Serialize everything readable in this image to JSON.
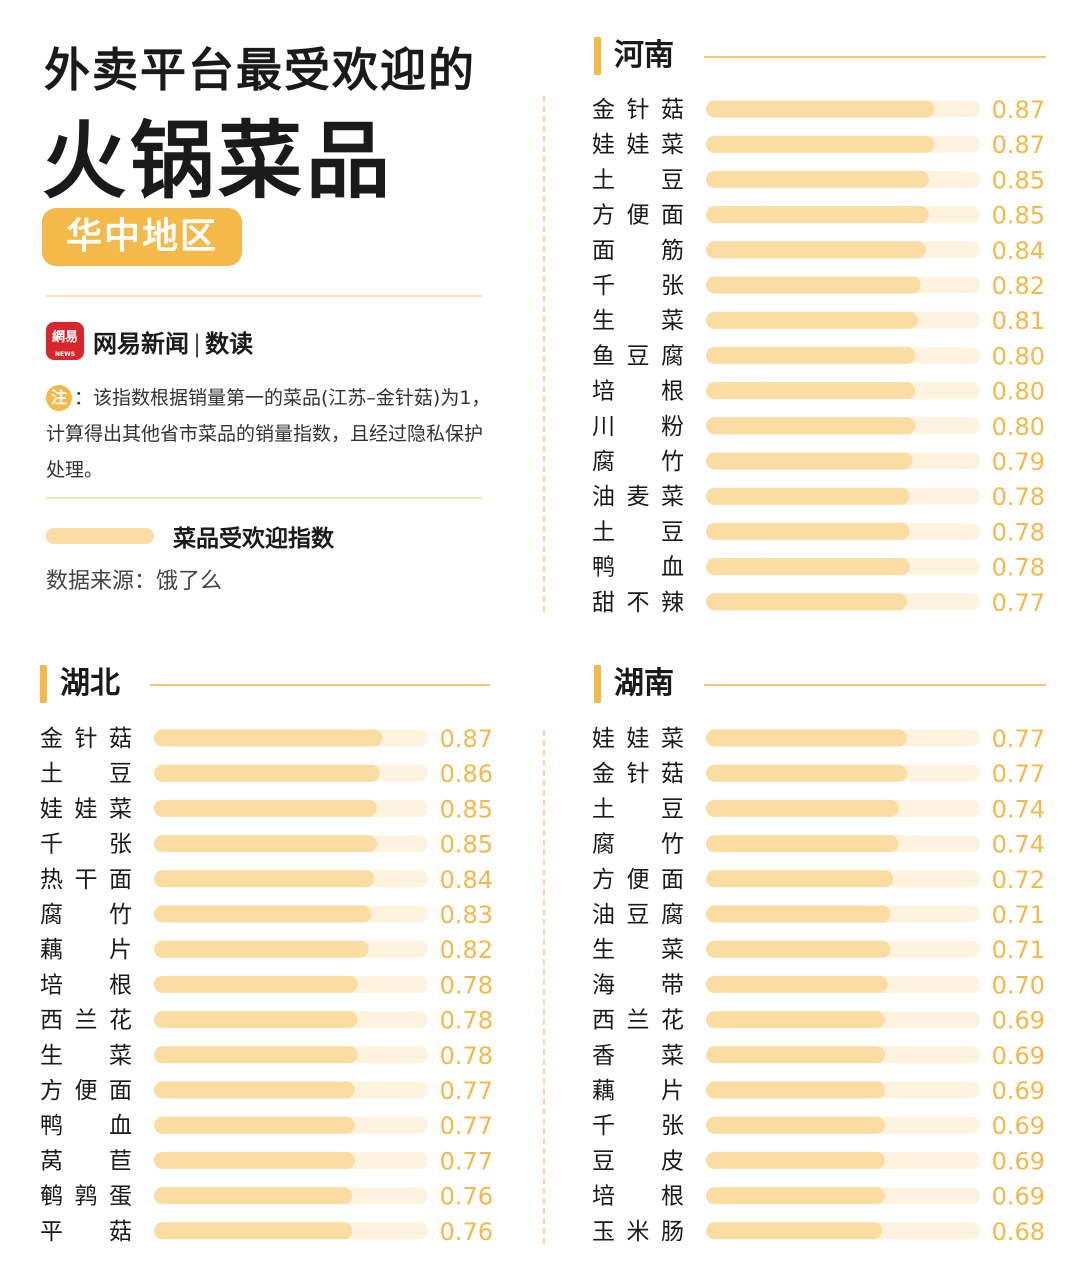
{
  "header": {
    "title_line1": "外卖平台最受欢迎的",
    "title_line2": "火锅菜品",
    "region": "华中地区"
  },
  "brand": {
    "logo_text": "網易",
    "logo_sub": "NEWS",
    "name": "网易新闻",
    "divider": "|",
    "column": "数读"
  },
  "note": {
    "badge": "注",
    "text": "：该指数根据销量第一的菜品(江苏–金针菇)为1，计算得出其他省市菜品的销量指数，且经过隐私保护处理。"
  },
  "legend": {
    "label": "菜品受欢迎指数"
  },
  "source": "数据来源：饿了么",
  "colors": {
    "accent": "#f4b948",
    "bar": "#fbdca3",
    "track": "#fef3df",
    "value": "#f4b948",
    "text": "#1a1a1a"
  },
  "chart_data": [
    {
      "type": "bar",
      "title": "河南",
      "orientation": "horizontal",
      "xlim": [
        0,
        1
      ],
      "categories": [
        "金针菇",
        "娃娃菜",
        "土豆",
        "方便面",
        "面筋",
        "千张",
        "生菜",
        "鱼豆腐",
        "培根",
        "川粉",
        "腐竹",
        "油麦菜",
        "土豆",
        "鸭血",
        "甜不辣"
      ],
      "values": [
        0.87,
        0.87,
        0.85,
        0.85,
        0.84,
        0.82,
        0.81,
        0.8,
        0.8,
        0.8,
        0.79,
        0.78,
        0.78,
        0.78,
        0.77
      ]
    },
    {
      "type": "bar",
      "title": "湖北",
      "orientation": "horizontal",
      "xlim": [
        0,
        1
      ],
      "categories": [
        "金针菇",
        "土豆",
        "娃娃菜",
        "千张",
        "热干面",
        "腐竹",
        "藕片",
        "培根",
        "西兰花",
        "生菜",
        "方便面",
        "鸭血",
        "莴苣",
        "鹌鹑蛋",
        "平菇"
      ],
      "values": [
        0.87,
        0.86,
        0.85,
        0.85,
        0.84,
        0.83,
        0.82,
        0.78,
        0.78,
        0.78,
        0.77,
        0.77,
        0.77,
        0.76,
        0.76
      ]
    },
    {
      "type": "bar",
      "title": "湖南",
      "orientation": "horizontal",
      "xlim": [
        0,
        1
      ],
      "categories": [
        "娃娃菜",
        "金针菇",
        "土豆",
        "腐竹",
        "方便面",
        "油豆腐",
        "生菜",
        "海带",
        "西兰花",
        "香菜",
        "藕片",
        "千张",
        "豆皮",
        "培根",
        "玉米肠"
      ],
      "values": [
        0.77,
        0.77,
        0.74,
        0.74,
        0.72,
        0.71,
        0.71,
        0.7,
        0.69,
        0.69,
        0.69,
        0.69,
        0.69,
        0.69,
        0.68
      ]
    }
  ]
}
